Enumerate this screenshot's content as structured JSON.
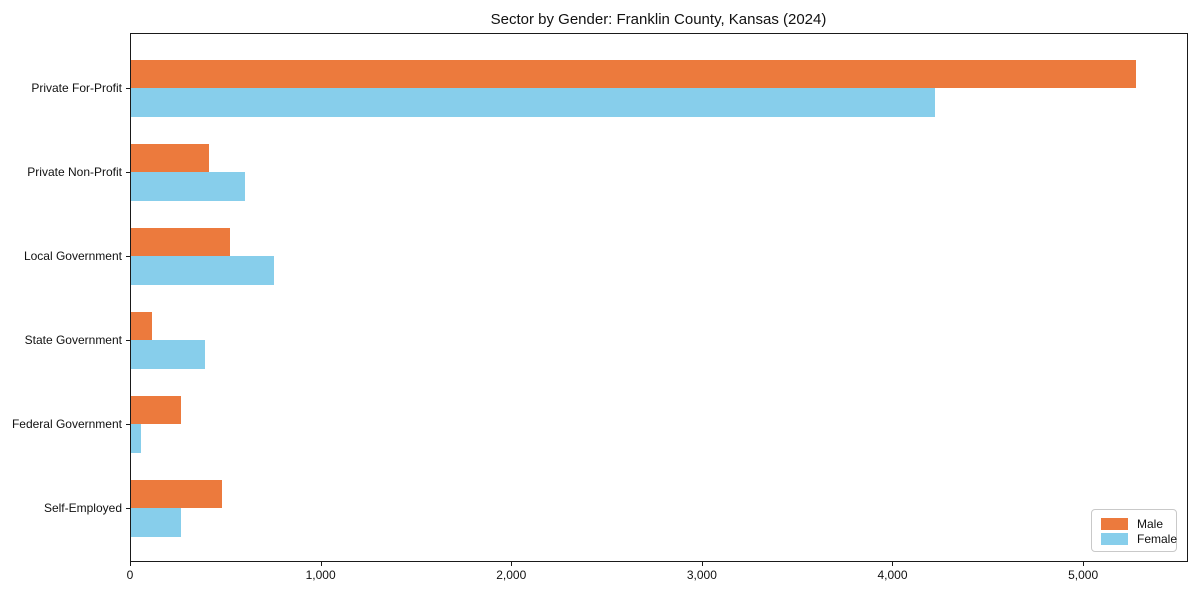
{
  "figure": {
    "kind": "static-bar-chart-figure"
  },
  "chart_data": {
    "type": "bar",
    "orientation": "horizontal",
    "title": "Sector by Gender: Franklin County, Kansas (2024)",
    "categories": [
      "Private For-Profit",
      "Private Non-Profit",
      "Local Government",
      "State Government",
      "Federal Government",
      "Self-Employed"
    ],
    "series": [
      {
        "name": "Male",
        "color": "#ec7a3d",
        "values": [
          5270,
          410,
          520,
          110,
          260,
          480
        ]
      },
      {
        "name": "Female",
        "color": "#87ceeb",
        "values": [
          4220,
          600,
          750,
          390,
          50,
          260
        ]
      }
    ],
    "xlabel": "",
    "ylabel": "",
    "xlim": [
      0,
      5545
    ],
    "xticks": [
      0,
      1000,
      2000,
      3000,
      4000,
      5000
    ],
    "xtick_labels": [
      "0",
      "1,000",
      "2,000",
      "3,000",
      "4,000",
      "5,000"
    ],
    "grid": false,
    "legend": {
      "position": "lower-right",
      "entries": [
        "Male",
        "Female"
      ]
    }
  }
}
